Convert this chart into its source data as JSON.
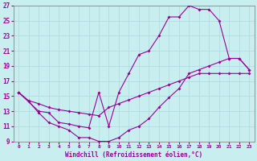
{
  "title": "",
  "xlabel": "Windchill (Refroidissement éolien,°C)",
  "ylabel": "",
  "bg_color": "#c8eef0",
  "line_color": "#990099",
  "grid_color": "#b0dde0",
  "xlim": [
    -0.5,
    23.5
  ],
  "ylim": [
    9,
    27
  ],
  "xticks": [
    0,
    1,
    2,
    3,
    4,
    5,
    6,
    7,
    8,
    9,
    10,
    11,
    12,
    13,
    14,
    15,
    16,
    17,
    18,
    19,
    20,
    21,
    22,
    23
  ],
  "yticks": [
    9,
    11,
    13,
    15,
    17,
    19,
    21,
    23,
    25,
    27
  ],
  "line1_x": [
    0,
    1,
    2,
    3,
    4,
    5,
    6,
    7,
    8,
    9,
    10,
    11,
    12,
    13,
    14,
    15,
    16,
    17,
    18,
    19,
    20,
    21,
    22,
    23
  ],
  "line1_y": [
    15.5,
    14.4,
    14.0,
    13.5,
    13.2,
    13.0,
    12.8,
    12.6,
    12.4,
    13.5,
    14.0,
    14.5,
    15.0,
    15.5,
    16.0,
    16.5,
    17.0,
    17.5,
    18.0,
    18.0,
    18.0,
    18.0,
    18.0,
    18.0
  ],
  "line2_x": [
    0,
    1,
    2,
    3,
    4,
    5,
    6,
    7,
    8,
    9,
    10,
    11,
    12,
    13,
    14,
    15,
    16,
    17,
    18,
    19,
    20,
    21,
    22,
    23
  ],
  "line2_y": [
    15.5,
    14.3,
    12.8,
    11.5,
    11.0,
    10.5,
    9.5,
    9.5,
    9.0,
    9.0,
    9.5,
    10.5,
    11.0,
    12.0,
    13.5,
    14.8,
    16.0,
    18.0,
    18.5,
    19.0,
    19.5,
    20.0,
    20.0,
    18.5
  ],
  "line3_x": [
    0,
    2,
    3,
    4,
    5,
    6,
    7,
    8,
    9,
    10,
    11,
    12,
    13,
    14,
    15,
    16,
    17,
    18,
    19,
    20,
    21,
    22,
    23
  ],
  "line3_y": [
    15.5,
    13.0,
    12.8,
    11.5,
    11.3,
    11.0,
    10.8,
    15.5,
    11.0,
    15.5,
    18.0,
    20.5,
    21.0,
    23.0,
    25.5,
    25.5,
    27.0,
    26.5,
    26.5,
    25.0,
    20.0,
    20.0,
    18.5
  ]
}
